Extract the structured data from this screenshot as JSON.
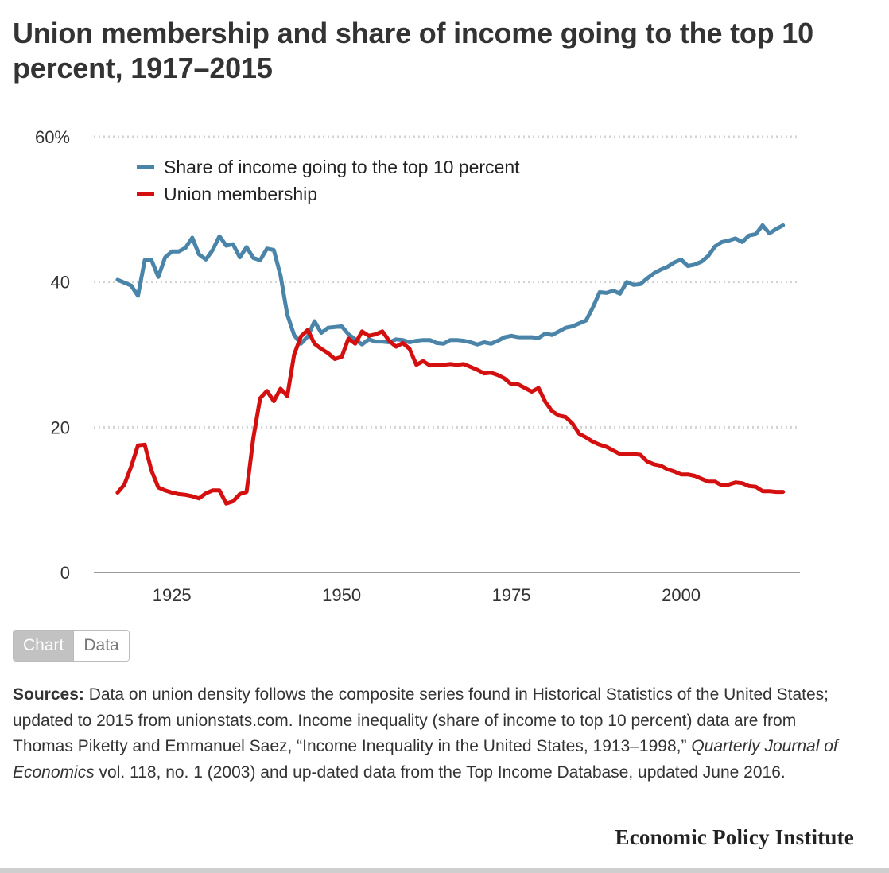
{
  "title": "Union membership and share of income going to the top 10 percent, 1917–2015",
  "toggle": {
    "chart_label": "Chart",
    "data_label": "Data"
  },
  "sources": {
    "label": "Sources:",
    "text_1": " Data on union density follows the composite series found in Historical Statistics of the United States; updated to 2015 from unionstats.com. Income inequality (share of income to top 10 percent) data are from Thomas Piketty and Emmanuel Saez, “Income Inequality in the United States, 1913–1998,” ",
    "journal": "Quarterly Journal of Economics",
    "text_2": " vol. 118, no. 1 (2003) and up-dated data from the Top Income Database, updated June 2016."
  },
  "publisher": "Economic Policy Institute",
  "chart_data": {
    "type": "line",
    "title": "Union membership and share of income going to the top 10 percent, 1917–2015",
    "xlabel": "",
    "ylabel": "",
    "xlim": [
      1913.5,
      2017.5
    ],
    "ylim": [
      0,
      60
    ],
    "x_ticks": [
      1925,
      1950,
      1975,
      2000
    ],
    "x_tick_labels": [
      "1925",
      "1950",
      "1975",
      "2000"
    ],
    "y_ticks": [
      0,
      20,
      40,
      60
    ],
    "y_tick_labels": [
      "0",
      "20",
      "40",
      "60%"
    ],
    "grid": "horizontal dotted",
    "legend_position": "top-left",
    "x": [
      1917,
      1918,
      1919,
      1920,
      1921,
      1922,
      1923,
      1924,
      1925,
      1926,
      1927,
      1928,
      1929,
      1930,
      1931,
      1932,
      1933,
      1934,
      1935,
      1936,
      1937,
      1938,
      1939,
      1940,
      1941,
      1942,
      1943,
      1944,
      1945,
      1946,
      1947,
      1948,
      1949,
      1950,
      1951,
      1952,
      1953,
      1954,
      1955,
      1956,
      1957,
      1958,
      1959,
      1960,
      1961,
      1962,
      1963,
      1964,
      1965,
      1966,
      1967,
      1968,
      1969,
      1970,
      1971,
      1972,
      1973,
      1974,
      1975,
      1976,
      1977,
      1978,
      1979,
      1980,
      1981,
      1982,
      1983,
      1984,
      1985,
      1986,
      1987,
      1988,
      1989,
      1990,
      1991,
      1992,
      1993,
      1994,
      1995,
      1996,
      1997,
      1998,
      1999,
      2000,
      2001,
      2002,
      2003,
      2004,
      2005,
      2006,
      2007,
      2008,
      2009,
      2010,
      2011,
      2012,
      2013,
      2014,
      2015
    ],
    "series": [
      {
        "name": "Share of income going to the top 10 percent",
        "color": "#4a84a8",
        "values": [
          40.3,
          39.9,
          39.5,
          38.1,
          43.0,
          43.0,
          40.7,
          43.4,
          44.2,
          44.2,
          44.7,
          46.1,
          43.8,
          43.1,
          44.4,
          46.3,
          45.0,
          45.2,
          43.4,
          44.8,
          43.3,
          43.0,
          44.6,
          44.4,
          40.9,
          35.5,
          32.7,
          31.5,
          32.5,
          34.6,
          33.0,
          33.7,
          33.8,
          33.9,
          32.8,
          32.1,
          31.4,
          32.1,
          31.8,
          31.8,
          31.7,
          32.1,
          32.0,
          31.7,
          31.9,
          32.0,
          32.0,
          31.6,
          31.5,
          32.0,
          32.0,
          31.9,
          31.7,
          31.4,
          31.7,
          31.5,
          31.9,
          32.4,
          32.6,
          32.4,
          32.4,
          32.4,
          32.3,
          32.9,
          32.7,
          33.2,
          33.7,
          33.9,
          34.3,
          34.7,
          36.5,
          38.6,
          38.5,
          38.8,
          38.4,
          40.0,
          39.6,
          39.7,
          40.5,
          41.2,
          41.7,
          42.1,
          42.7,
          43.1,
          42.2,
          42.4,
          42.8,
          43.6,
          44.9,
          45.5,
          45.7,
          46.0,
          45.5,
          46.4,
          46.6,
          47.8,
          46.7,
          47.3,
          47.8
        ]
      },
      {
        "name": "Union membership",
        "color": "#d40f0f",
        "values": [
          11.0,
          12.1,
          14.6,
          17.5,
          17.6,
          14.0,
          11.7,
          11.3,
          11.0,
          10.8,
          10.7,
          10.5,
          10.2,
          10.9,
          11.3,
          11.3,
          9.5,
          9.8,
          10.8,
          11.1,
          18.6,
          24.0,
          25.0,
          23.6,
          25.3,
          24.3,
          30.0,
          32.5,
          33.4,
          31.5,
          30.8,
          30.2,
          29.4,
          29.7,
          32.2,
          31.5,
          33.2,
          32.6,
          32.8,
          33.2,
          31.9,
          31.1,
          31.6,
          30.8,
          28.6,
          29.1,
          28.5,
          28.6,
          28.6,
          28.7,
          28.6,
          28.7,
          28.3,
          27.9,
          27.4,
          27.5,
          27.2,
          26.7,
          25.9,
          25.9,
          25.4,
          24.9,
          25.4,
          23.5,
          22.2,
          21.6,
          21.4,
          20.5,
          19.1,
          18.6,
          18.0,
          17.6,
          17.3,
          16.8,
          16.3,
          16.3,
          16.3,
          16.2,
          15.3,
          14.9,
          14.7,
          14.2,
          13.9,
          13.5,
          13.5,
          13.3,
          12.9,
          12.5,
          12.5,
          12.0,
          12.1,
          12.4,
          12.3,
          11.9,
          11.8,
          11.2,
          11.2,
          11.1,
          11.1
        ]
      }
    ]
  }
}
